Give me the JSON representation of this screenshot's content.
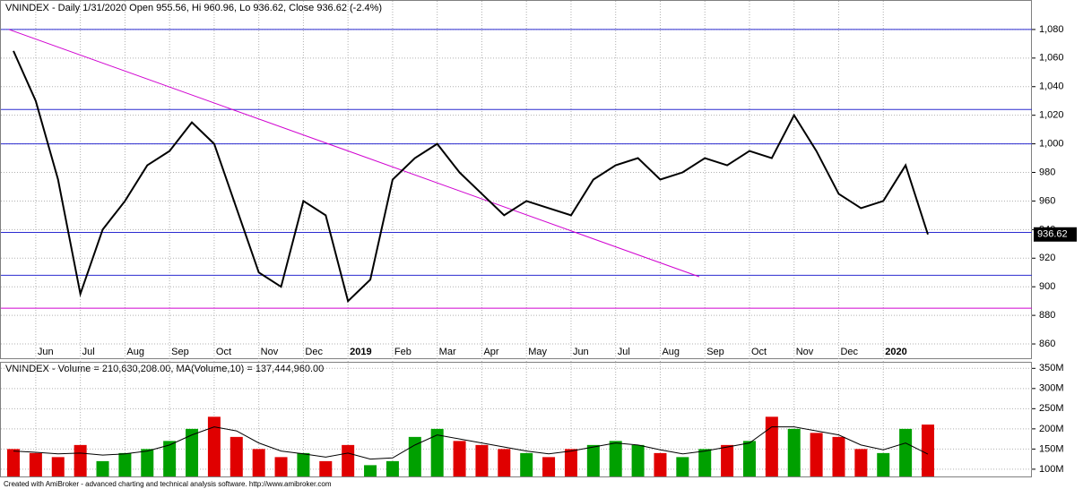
{
  "chart_data": [
    {
      "type": "line",
      "title": "VNINDEX - Daily 1/31/2020 Open 955.56, Hi 960.96, Lo 936.62, Close 936.62 (-2.4%)",
      "categories": [
        null,
        "Jun",
        null,
        "Jul",
        null,
        "Aug",
        null,
        "Sep",
        null,
        "Oct",
        null,
        "Nov",
        null,
        "Dec",
        null,
        "2019",
        null,
        "Feb",
        null,
        "Mar",
        null,
        "Apr",
        null,
        "May",
        null,
        "Jun",
        null,
        "Jul",
        null,
        "Aug",
        null,
        "Sep",
        null,
        "Oct",
        null,
        "Nov",
        null,
        "Dec",
        null,
        "2020",
        null,
        null
      ],
      "series": [
        {
          "name": "VNINDEX",
          "color": "#000000",
          "values": [
            1065,
            1030,
            975,
            895,
            940,
            960,
            985,
            995,
            1015,
            1000,
            955,
            910,
            900,
            960,
            950,
            890,
            905,
            975,
            990,
            1000,
            980,
            965,
            950,
            960,
            955,
            950,
            975,
            985,
            990,
            975,
            980,
            990,
            985,
            995,
            990,
            1020,
            995,
            965,
            955,
            960,
            985,
            936.62
          ]
        }
      ],
      "last_label": "936.62",
      "levels": [
        1080,
        1024,
        1000,
        938,
        908
      ],
      "level_color": "#2b2bd0",
      "low_level": 885,
      "low_level_color": "#d000d0",
      "trendline": [
        1080,
        907
      ],
      "ylim": [
        850,
        1100
      ],
      "yticks": [
        860,
        880,
        900,
        920,
        940,
        960,
        980,
        {
          "value": 1000,
          "label": "1,000"
        },
        {
          "value": 1020,
          "label": "1,020"
        },
        {
          "value": 1040,
          "label": "1,040"
        },
        {
          "value": 1060,
          "label": "1,060"
        },
        {
          "value": 1080,
          "label": "1,080"
        }
      ],
      "grid": true
    },
    {
      "type": "bar",
      "title": "VNINDEX - Volume = 210,630,208.00, MA(Volume,10) = 137,444,960.00",
      "series": [
        {
          "name": "Volume",
          "color": "#e00000",
          "up_color": "#00a000",
          "values": [
            150,
            140,
            130,
            160,
            120,
            140,
            150,
            170,
            200,
            230,
            180,
            150,
            130,
            140,
            120,
            160,
            110,
            120,
            180,
            200,
            170,
            160,
            150,
            140,
            130,
            150,
            160,
            170,
            160,
            140,
            130,
            150,
            160,
            170,
            230,
            200,
            190,
            180,
            150,
            140,
            200,
            210.63
          ]
        },
        {
          "name": "MA(Volume,10)",
          "color": "#000000",
          "values": [
            145,
            142,
            138,
            140,
            135,
            138,
            145,
            160,
            185,
            205,
            195,
            165,
            145,
            138,
            130,
            140,
            125,
            128,
            160,
            185,
            175,
            165,
            155,
            145,
            138,
            145,
            155,
            165,
            160,
            148,
            138,
            145,
            155,
            165,
            205,
            205,
            195,
            185,
            160,
            148,
            165,
            137.44
          ]
        }
      ],
      "ylim": [
        82,
        364
      ],
      "yticks": [
        {
          "value": 100,
          "label": "100M"
        },
        {
          "value": 150,
          "label": "150M"
        },
        {
          "value": 200,
          "label": "200M"
        },
        {
          "value": 250,
          "label": "250M"
        },
        {
          "value": 300,
          "label": "300M"
        },
        {
          "value": 350,
          "label": "350M"
        }
      ],
      "grid": true
    }
  ],
  "footer": "Created with AmiBroker - advanced charting and technical analysis software. http://www.amibroker.com"
}
